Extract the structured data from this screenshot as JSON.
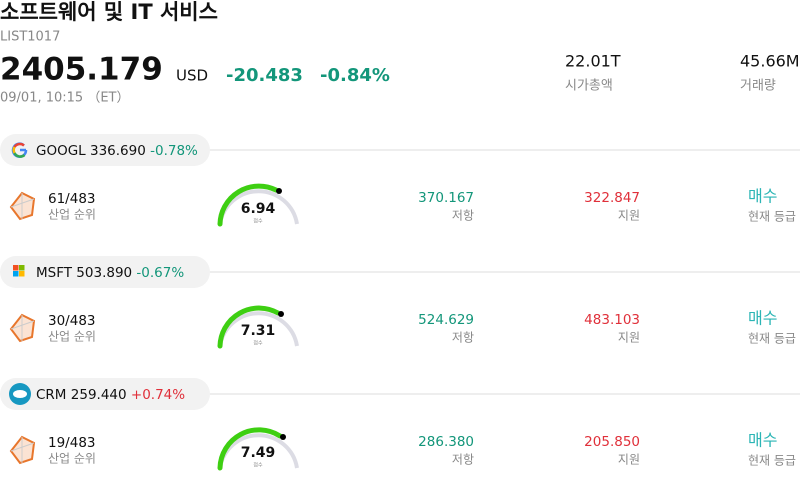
{
  "header": {
    "title": "소프트웨어 및 IT 서비스",
    "code": "LIST1017",
    "price": "2405.179",
    "currency": "USD",
    "change": "-20.483",
    "change_pct": "-0.84%",
    "time": "09/01, 10:15 （ET）",
    "stats": [
      {
        "value": "22.01T",
        "label": "시가총액"
      },
      {
        "value": "45.66M",
        "label": "거래량"
      }
    ]
  },
  "stocks": [
    {
      "ticker": "GOOGL",
      "price": "336.690",
      "change_pct": "-0.78%",
      "rank": "61/483",
      "rank_label": "산업 순위",
      "score": "6.94",
      "score_label": "점수",
      "resistance": "370.167",
      "resistance_label": "저항",
      "support": "322.847",
      "support_label": "지원",
      "rating": "매수",
      "rating_label": "현재 등급"
    },
    {
      "ticker": "MSFT",
      "price": "503.890",
      "change_pct": "-0.67%",
      "rank": "30/483",
      "rank_label": "산업 순위",
      "score": "7.31",
      "score_label": "점수",
      "resistance": "524.629",
      "resistance_label": "저항",
      "support": "483.103",
      "support_label": "지원",
      "rating": "매수",
      "rating_label": "현재 등급"
    },
    {
      "ticker": "CRM",
      "price": "259.440",
      "change_pct": "+0.74%",
      "rank": "19/483",
      "rank_label": "산업 순위",
      "score": "7.49",
      "score_label": "점수",
      "resistance": "286.380",
      "resistance_label": "저항",
      "support": "205.850",
      "support_label": "지원",
      "rating": "매수",
      "rating_label": "현재 등급"
    }
  ]
}
